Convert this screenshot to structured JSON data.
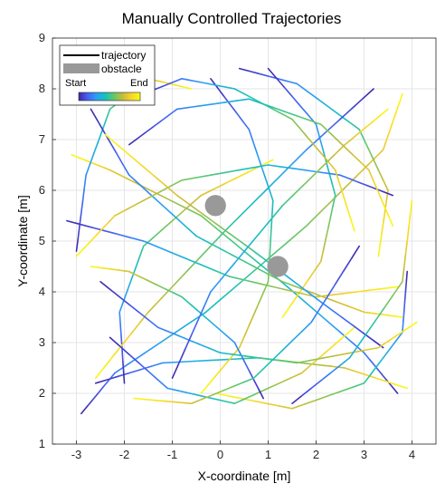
{
  "chart_data": {
    "type": "line",
    "title": "Manually Controlled Trajectories",
    "xlabel": "X-coordinate [m]",
    "ylabel": "Y-coordinate [m]",
    "xlim": [
      -3.5,
      4.5
    ],
    "ylim": [
      1,
      9
    ],
    "xticks": [
      -3,
      -2,
      -1,
      0,
      1,
      2,
      3,
      4
    ],
    "yticks": [
      1,
      2,
      3,
      4,
      5,
      6,
      7,
      8,
      9
    ],
    "grid": true,
    "legend": {
      "placement": "top-left",
      "entries": [
        {
          "label": "trajectory",
          "kind": "line",
          "color": "#000000"
        },
        {
          "label": "obstacle",
          "kind": "patch",
          "color": "#999999"
        }
      ],
      "colorbar": {
        "start_label": "Start",
        "end_label": "End"
      }
    },
    "colormap": [
      "#3e26a8",
      "#4760f0",
      "#2b9ef6",
      "#16c0c1",
      "#63c869",
      "#c5bc3b",
      "#f6d52c",
      "#f9fb15"
    ],
    "obstacles": [
      {
        "x": -0.1,
        "y": 5.7,
        "radius": 0.22,
        "color": "#999999"
      },
      {
        "x": 1.2,
        "y": 4.5,
        "radius": 0.22,
        "color": "#999999"
      }
    ],
    "series": [
      {
        "x": [
          -2.9,
          -2.2,
          -0.3,
          1.8,
          3.4,
          3.8
        ],
        "y": [
          1.6,
          2.4,
          3.6,
          5.3,
          6.8,
          7.9
        ]
      },
      {
        "x": [
          3.7,
          3.0,
          1.4,
          -0.4,
          -2.3,
          -3.1
        ],
        "y": [
          2.0,
          2.8,
          4.1,
          5.5,
          6.4,
          6.7
        ]
      },
      {
        "x": [
          -2.6,
          -1.2,
          0.8,
          2.6,
          3.9
        ],
        "y": [
          2.2,
          2.6,
          2.7,
          2.5,
          2.1
        ]
      },
      {
        "x": [
          -3.0,
          -2.8,
          -2.3,
          -1.5,
          -0.6
        ],
        "y": [
          4.8,
          6.3,
          7.6,
          8.2,
          8.0
        ]
      },
      {
        "x": [
          0.4,
          1.6,
          2.9,
          3.5,
          3.3
        ],
        "y": [
          8.4,
          8.1,
          7.2,
          6.0,
          4.7
        ]
      },
      {
        "x": [
          3.9,
          3.8,
          3.0,
          1.5,
          -0.1
        ],
        "y": [
          4.4,
          3.2,
          2.2,
          1.7,
          2.0
        ]
      },
      {
        "x": [
          -2.0,
          -2.1,
          -1.6,
          -0.4,
          1.1
        ],
        "y": [
          2.2,
          3.6,
          4.9,
          5.9,
          6.6
        ]
      },
      {
        "x": [
          1.0,
          2.0,
          2.4,
          2.1,
          1.3
        ],
        "y": [
          8.4,
          7.3,
          5.9,
          4.6,
          3.5
        ]
      },
      {
        "x": [
          -2.7,
          -1.9,
          -0.5,
          1.3,
          3.0,
          3.8
        ],
        "y": [
          7.6,
          6.3,
          5.1,
          4.2,
          3.6,
          3.5
        ]
      },
      {
        "x": [
          3.2,
          1.8,
          0.1,
          -1.5,
          -2.6
        ],
        "y": [
          8.0,
          6.8,
          5.2,
          3.6,
          2.3
        ]
      },
      {
        "x": [
          -3.2,
          -1.6,
          0.2,
          2.0,
          3.7
        ],
        "y": [
          5.4,
          5.0,
          4.3,
          3.9,
          4.1
        ]
      },
      {
        "x": [
          -0.2,
          0.6,
          1.1,
          1.0,
          0.4,
          -0.4
        ],
        "y": [
          8.2,
          7.2,
          5.8,
          4.2,
          2.9,
          2.0
        ]
      },
      {
        "x": [
          3.6,
          2.5,
          1.0,
          -0.8,
          -2.2,
          -3.0
        ],
        "y": [
          5.9,
          6.3,
          6.5,
          6.2,
          5.5,
          4.7
        ]
      },
      {
        "x": [
          -2.3,
          -1.1,
          0.3,
          1.7,
          2.8
        ],
        "y": [
          3.1,
          2.1,
          1.8,
          2.4,
          3.3
        ]
      },
      {
        "x": [
          -1.6,
          -0.8,
          0.3,
          1.5,
          2.4,
          2.8
        ],
        "y": [
          7.9,
          8.2,
          8.0,
          7.4,
          6.4,
          5.2
        ]
      },
      {
        "x": [
          3.4,
          2.1,
          0.7,
          -0.9,
          -2.4
        ],
        "y": [
          2.9,
          3.8,
          4.8,
          5.9,
          7.1
        ]
      },
      {
        "x": [
          0.9,
          0.3,
          -0.8,
          -1.9,
          -2.7
        ],
        "y": [
          1.9,
          3.0,
          3.9,
          4.4,
          4.5
        ]
      },
      {
        "x": [
          -1.9,
          -0.9,
          0.6,
          2.1,
          3.1,
          3.6
        ],
        "y": [
          6.9,
          7.6,
          7.8,
          7.3,
          6.4,
          5.3
        ]
      },
      {
        "x": [
          -2.5,
          -1.3,
          0.0,
          1.6,
          3.3,
          4.1
        ],
        "y": [
          4.2,
          3.3,
          2.8,
          2.6,
          2.9,
          3.4
        ]
      },
      {
        "x": [
          1.5,
          2.7,
          3.8,
          4.0
        ],
        "y": [
          1.8,
          2.7,
          4.2,
          5.8
        ]
      },
      {
        "x": [
          -1.0,
          -0.2,
          1.3,
          2.6,
          3.5
        ],
        "y": [
          2.3,
          4.0,
          5.7,
          6.9,
          7.6
        ]
      },
      {
        "x": [
          2.9,
          1.9,
          0.7,
          -0.6,
          -1.8
        ],
        "y": [
          4.9,
          3.4,
          2.3,
          1.8,
          1.9
        ]
      }
    ]
  }
}
